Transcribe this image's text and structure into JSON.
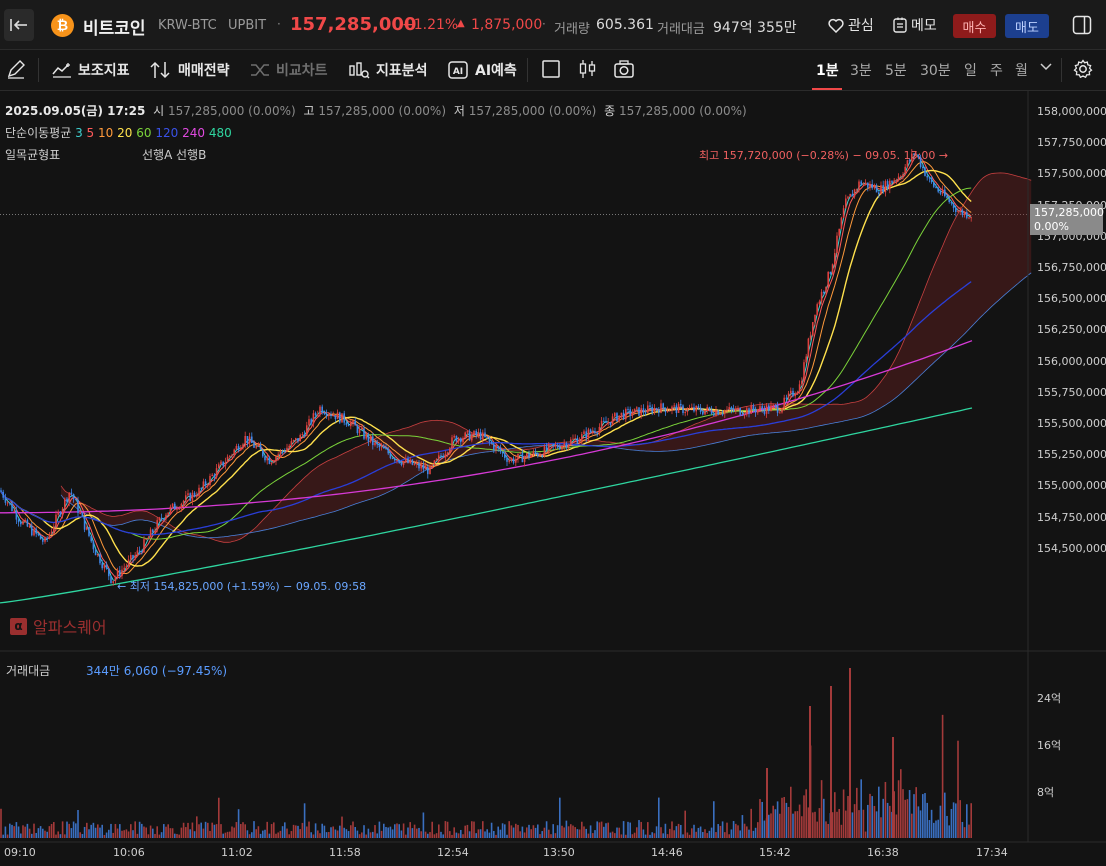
{
  "header": {
    "collapse_icon": "collapse-left-icon",
    "coin_symbol": "₿",
    "coin_name": "비트코인",
    "pair": "KRW-BTC",
    "exchange": "UPBIT",
    "price": "157,285,000",
    "change_pct": "+1.21%",
    "change_arrow": "▲",
    "change_amount": "1,875,000",
    "volume_label": "거래량",
    "volume_value": "605.361",
    "amount_label": "거래대금",
    "amount_value": "947억 355만",
    "watch_label": "관심",
    "memo_label": "메모",
    "buy_label": "매수",
    "sell_label": "매도"
  },
  "toolbar": {
    "aux_indicator": "보조지표",
    "strategy": "매매전략",
    "compare": "비교차트",
    "indicator_analysis": "지표분석",
    "ai_predict": "AI예측",
    "timeframes": [
      "1분",
      "3분",
      "5분",
      "30분",
      "일",
      "주",
      "월"
    ],
    "active_timeframe": "1분"
  },
  "legend": {
    "ohlc_date": "2025.09.05(금) 17:25",
    "open_label": "시",
    "open": "157,285,000 (0.00%)",
    "high_label": "고",
    "high": "157,285,000 (0.00%)",
    "low_label": "저",
    "low": "157,285,000 (0.00%)",
    "close_label": "종",
    "close": "157,285,000 (0.00%)",
    "sma_label": "단순이동평균",
    "sma_periods": [
      "3",
      "5",
      "10",
      "20",
      "60",
      "120",
      "240",
      "480"
    ],
    "ichimoku_label": "일목균형표",
    "span_a": "선행A",
    "span_b": "선행B"
  },
  "price_axis": {
    "ticks": [
      "158,000,000",
      "157,750,000",
      "157,500,000",
      "157,250,000",
      "157,000,000",
      "156,750,000",
      "156,500,000",
      "156,250,000",
      "156,000,000",
      "155,750,000",
      "155,500,000",
      "155,250,000",
      "155,000,000",
      "154,750,000",
      "154,500,000"
    ],
    "current_tag_price": "157,285,000",
    "current_tag_pct": "0.00%"
  },
  "annotations": {
    "high": "최고 157,720,000 (−0.28%) − 09.05. 17:00 →",
    "low": "← 최저 154,825,000 (+1.59%) − 09.05. 09:58"
  },
  "watermark": "알파스퀘어",
  "volume_panel": {
    "title": "거래대금",
    "readout": "344만 6,060 (−97.45%)",
    "ticks": [
      "24억",
      "16억",
      "8억"
    ]
  },
  "time_axis": [
    "09:10",
    "10:06",
    "11:02",
    "11:58",
    "12:54",
    "13:50",
    "14:46",
    "15:42",
    "16:38",
    "17:34"
  ],
  "colors": {
    "up": "#e0413f",
    "down": "#3f86e8",
    "sma3": "#ff5a5a",
    "sma5": "#ff9a3c",
    "sma10": "#ffe14d",
    "sma20": "#ffe14d",
    "sma60": "#7bd33a",
    "sma120": "#2a3ed8",
    "sma240": "#d63ad6",
    "sma480": "#2fd6a0"
  },
  "chart_data": {
    "type": "line",
    "x": [
      "09:10",
      "10:06",
      "11:02",
      "11:58",
      "12:54",
      "13:50",
      "14:46",
      "15:42",
      "16:38",
      "17:25"
    ],
    "series": [
      {
        "name": "종가",
        "values": [
          155450000,
          155050000,
          155700000,
          155950000,
          155700000,
          155750000,
          156000000,
          156000000,
          157550000,
          157285000
        ]
      }
    ],
    "ylim": [
      154400000,
      158100000
    ],
    "y_ticks": [
      154500000,
      154750000,
      155000000,
      155250000,
      155500000,
      155750000,
      156000000,
      156250000,
      156500000,
      156750000,
      157000000,
      157250000,
      157500000,
      157750000,
      158000000
    ]
  }
}
